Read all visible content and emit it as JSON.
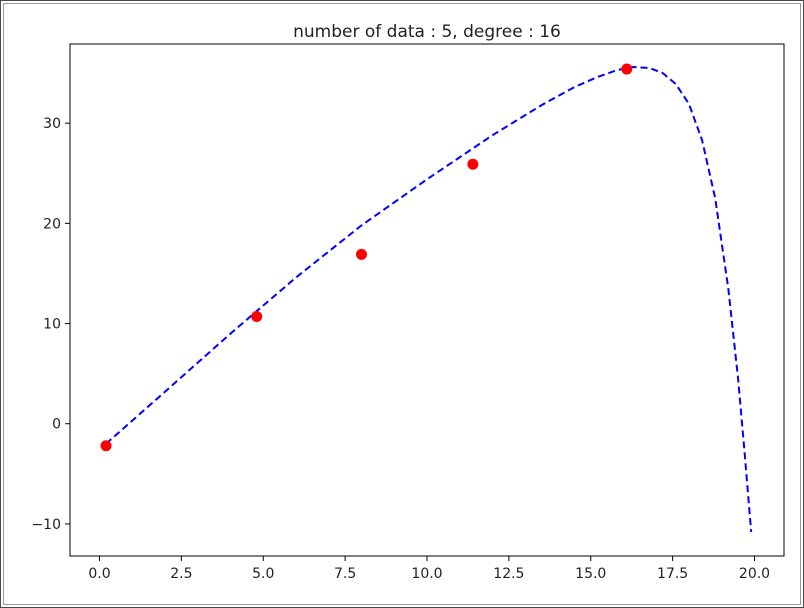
{
  "chart_data": {
    "type": "scatter",
    "title": "number of data : 5, degree : 16",
    "xlabel": "",
    "ylabel": "",
    "xlim": [
      -0.9,
      20.9
    ],
    "ylim": [
      -13.2,
      37.9
    ],
    "x_ticks": [
      0.0,
      2.5,
      5.0,
      7.5,
      10.0,
      12.5,
      15.0,
      17.5,
      20.0
    ],
    "x_tick_labels": [
      "0.0",
      "2.5",
      "5.0",
      "7.5",
      "10.0",
      "12.5",
      "15.0",
      "17.5",
      "20.0"
    ],
    "y_ticks": [
      -10,
      0,
      10,
      20,
      30
    ],
    "y_tick_labels": [
      "−10",
      "0",
      "10",
      "20",
      "30"
    ],
    "grid": false,
    "series": [
      {
        "kind": "scatter",
        "color": "#ff0000",
        "x": [
          0.2,
          4.8,
          8.0,
          11.4,
          16.1
        ],
        "y": [
          -2.2,
          10.7,
          16.9,
          25.9,
          35.4
        ]
      },
      {
        "kind": "line",
        "style": "dashed",
        "color": "#0000ff",
        "x": [
          0.2,
          2.0,
          4.0,
          6.0,
          8.0,
          10.0,
          12.0,
          13.5,
          14.5,
          15.2,
          15.8,
          16.3,
          16.8,
          17.2,
          17.6,
          18.0,
          18.4,
          18.8,
          19.2,
          19.5,
          19.7,
          19.9
        ],
        "y": [
          -2.0,
          3.2,
          9.0,
          14.6,
          19.8,
          24.4,
          28.8,
          31.8,
          33.6,
          34.6,
          35.3,
          35.6,
          35.5,
          35.0,
          33.9,
          31.9,
          28.3,
          22.5,
          13.5,
          4.5,
          -3.0,
          -10.8
        ]
      }
    ]
  }
}
